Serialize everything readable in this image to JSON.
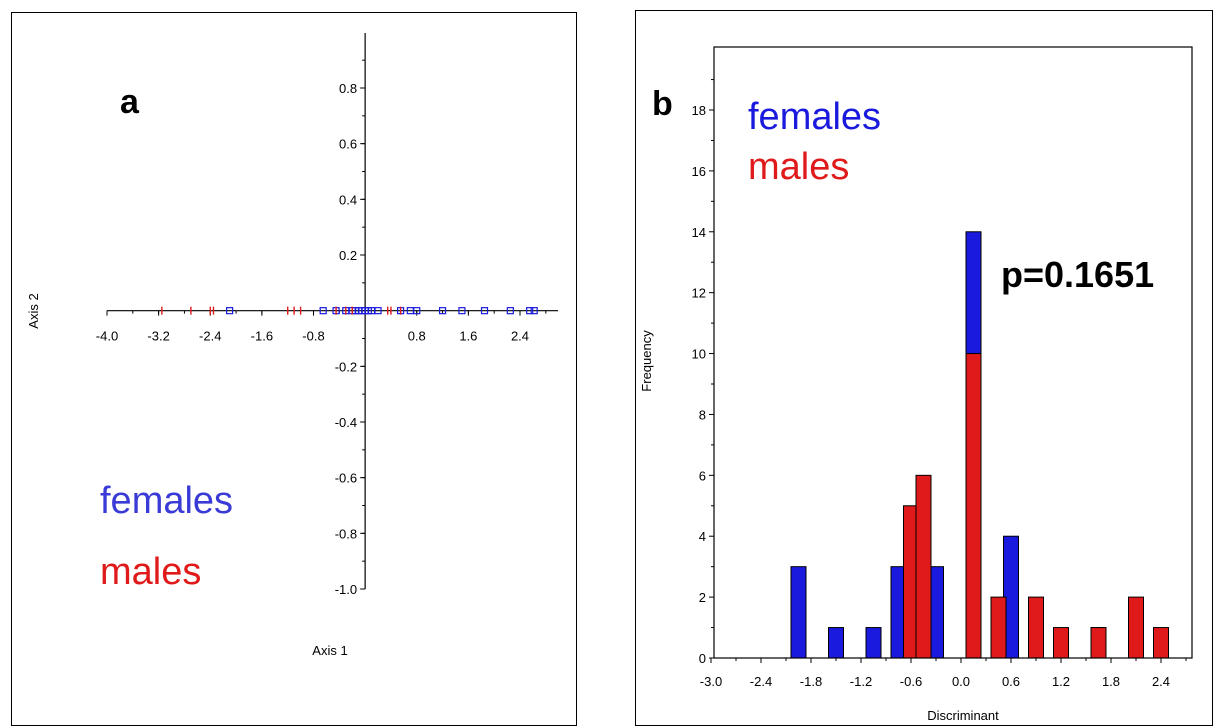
{
  "chart_data": [
    {
      "type": "scatter",
      "panel_label": "a",
      "xlabel": "Axis 1",
      "ylabel": "Axis 2",
      "xlim": [
        -4.0,
        2.9
      ],
      "ylim": [
        -1.0,
        1.0
      ],
      "x_ticks": [
        "-4.0",
        "-3.2",
        "-2.4",
        "-1.6",
        "-0.8",
        "0.8",
        "1.6",
        "2.4"
      ],
      "x_tick_values": [
        -4.0,
        -3.2,
        -2.4,
        -1.6,
        -0.8,
        0.8,
        1.6,
        2.4
      ],
      "y_ticks": [
        "0.8",
        "0.6",
        "0.4",
        "0.2",
        "-0.2",
        "-0.4",
        "-0.6",
        "-0.8",
        "-1.0"
      ],
      "y_tick_values": [
        0.8,
        0.6,
        0.4,
        0.2,
        -0.2,
        -0.4,
        -0.6,
        -0.8,
        -1.0
      ],
      "legend": [
        {
          "label": "females",
          "color": "#3a3ad6"
        },
        {
          "label": "males",
          "color": "#e01a1a"
        }
      ],
      "series": [
        {
          "name": "females",
          "marker": "square",
          "color": "#1a1adf",
          "x": [
            -2.1,
            -0.65,
            -0.45,
            -0.3,
            -0.2,
            -0.15,
            -0.1,
            -0.05,
            0.0,
            0.05,
            0.1,
            0.2,
            0.55,
            0.7,
            0.8,
            1.2,
            1.5,
            1.85,
            2.25,
            2.55,
            2.62
          ],
          "y": [
            0,
            0,
            0,
            0,
            0,
            0,
            0,
            0,
            0,
            0,
            0,
            0,
            0,
            0,
            0,
            0,
            0,
            0,
            0,
            0,
            0
          ]
        },
        {
          "name": "males",
          "marker": "plus",
          "color": "#e01a1a",
          "x": [
            -3.15,
            -2.7,
            -2.4,
            -2.35,
            -1.2,
            -1.1,
            -1.0,
            -0.45,
            -0.3,
            -0.2,
            0.35,
            0.4,
            0.55
          ],
          "y": [
            0,
            0,
            0,
            0,
            0,
            0,
            0,
            0,
            0,
            0,
            0,
            0,
            0
          ]
        }
      ]
    },
    {
      "type": "bar",
      "panel_label": "b",
      "xlabel": "Discriminant",
      "ylabel": "Frequency",
      "xlim": [
        -3.0,
        2.8
      ],
      "ylim": [
        0,
        20
      ],
      "x_ticks": [
        "-3.0",
        "-2.4",
        "-1.8",
        "-1.2",
        "-0.6",
        "0.0",
        "0.6",
        "1.2",
        "1.8",
        "2.4"
      ],
      "x_tick_values": [
        -3.0,
        -2.4,
        -1.8,
        -1.2,
        -0.6,
        0.0,
        0.6,
        1.2,
        1.8,
        2.4
      ],
      "y_ticks": [
        "0",
        "2",
        "4",
        "6",
        "8",
        "10",
        "12",
        "14",
        "16",
        "18"
      ],
      "y_tick_values": [
        0,
        2,
        4,
        6,
        8,
        10,
        12,
        14,
        16,
        18
      ],
      "legend": [
        {
          "label": "females",
          "color": "#1a1adf"
        },
        {
          "label": "males",
          "color": "#e01a1a"
        }
      ],
      "annotation": "p=0.1651",
      "bar_width": 0.18,
      "series": [
        {
          "name": "females",
          "color": "#1a1adf",
          "x": [
            -1.95,
            -1.5,
            -1.05,
            -0.75,
            -0.3,
            0.15,
            0.6,
            1.65
          ],
          "values": [
            3,
            1,
            1,
            3,
            3,
            14,
            4,
            1
          ]
        },
        {
          "name": "males",
          "color": "#e01a1a",
          "x": [
            -0.6,
            -0.45,
            0.15,
            0.45,
            0.9,
            1.2,
            1.65,
            2.1,
            2.4
          ],
          "values": [
            5,
            6,
            10,
            2,
            2,
            1,
            1,
            2,
            1
          ]
        }
      ]
    }
  ]
}
